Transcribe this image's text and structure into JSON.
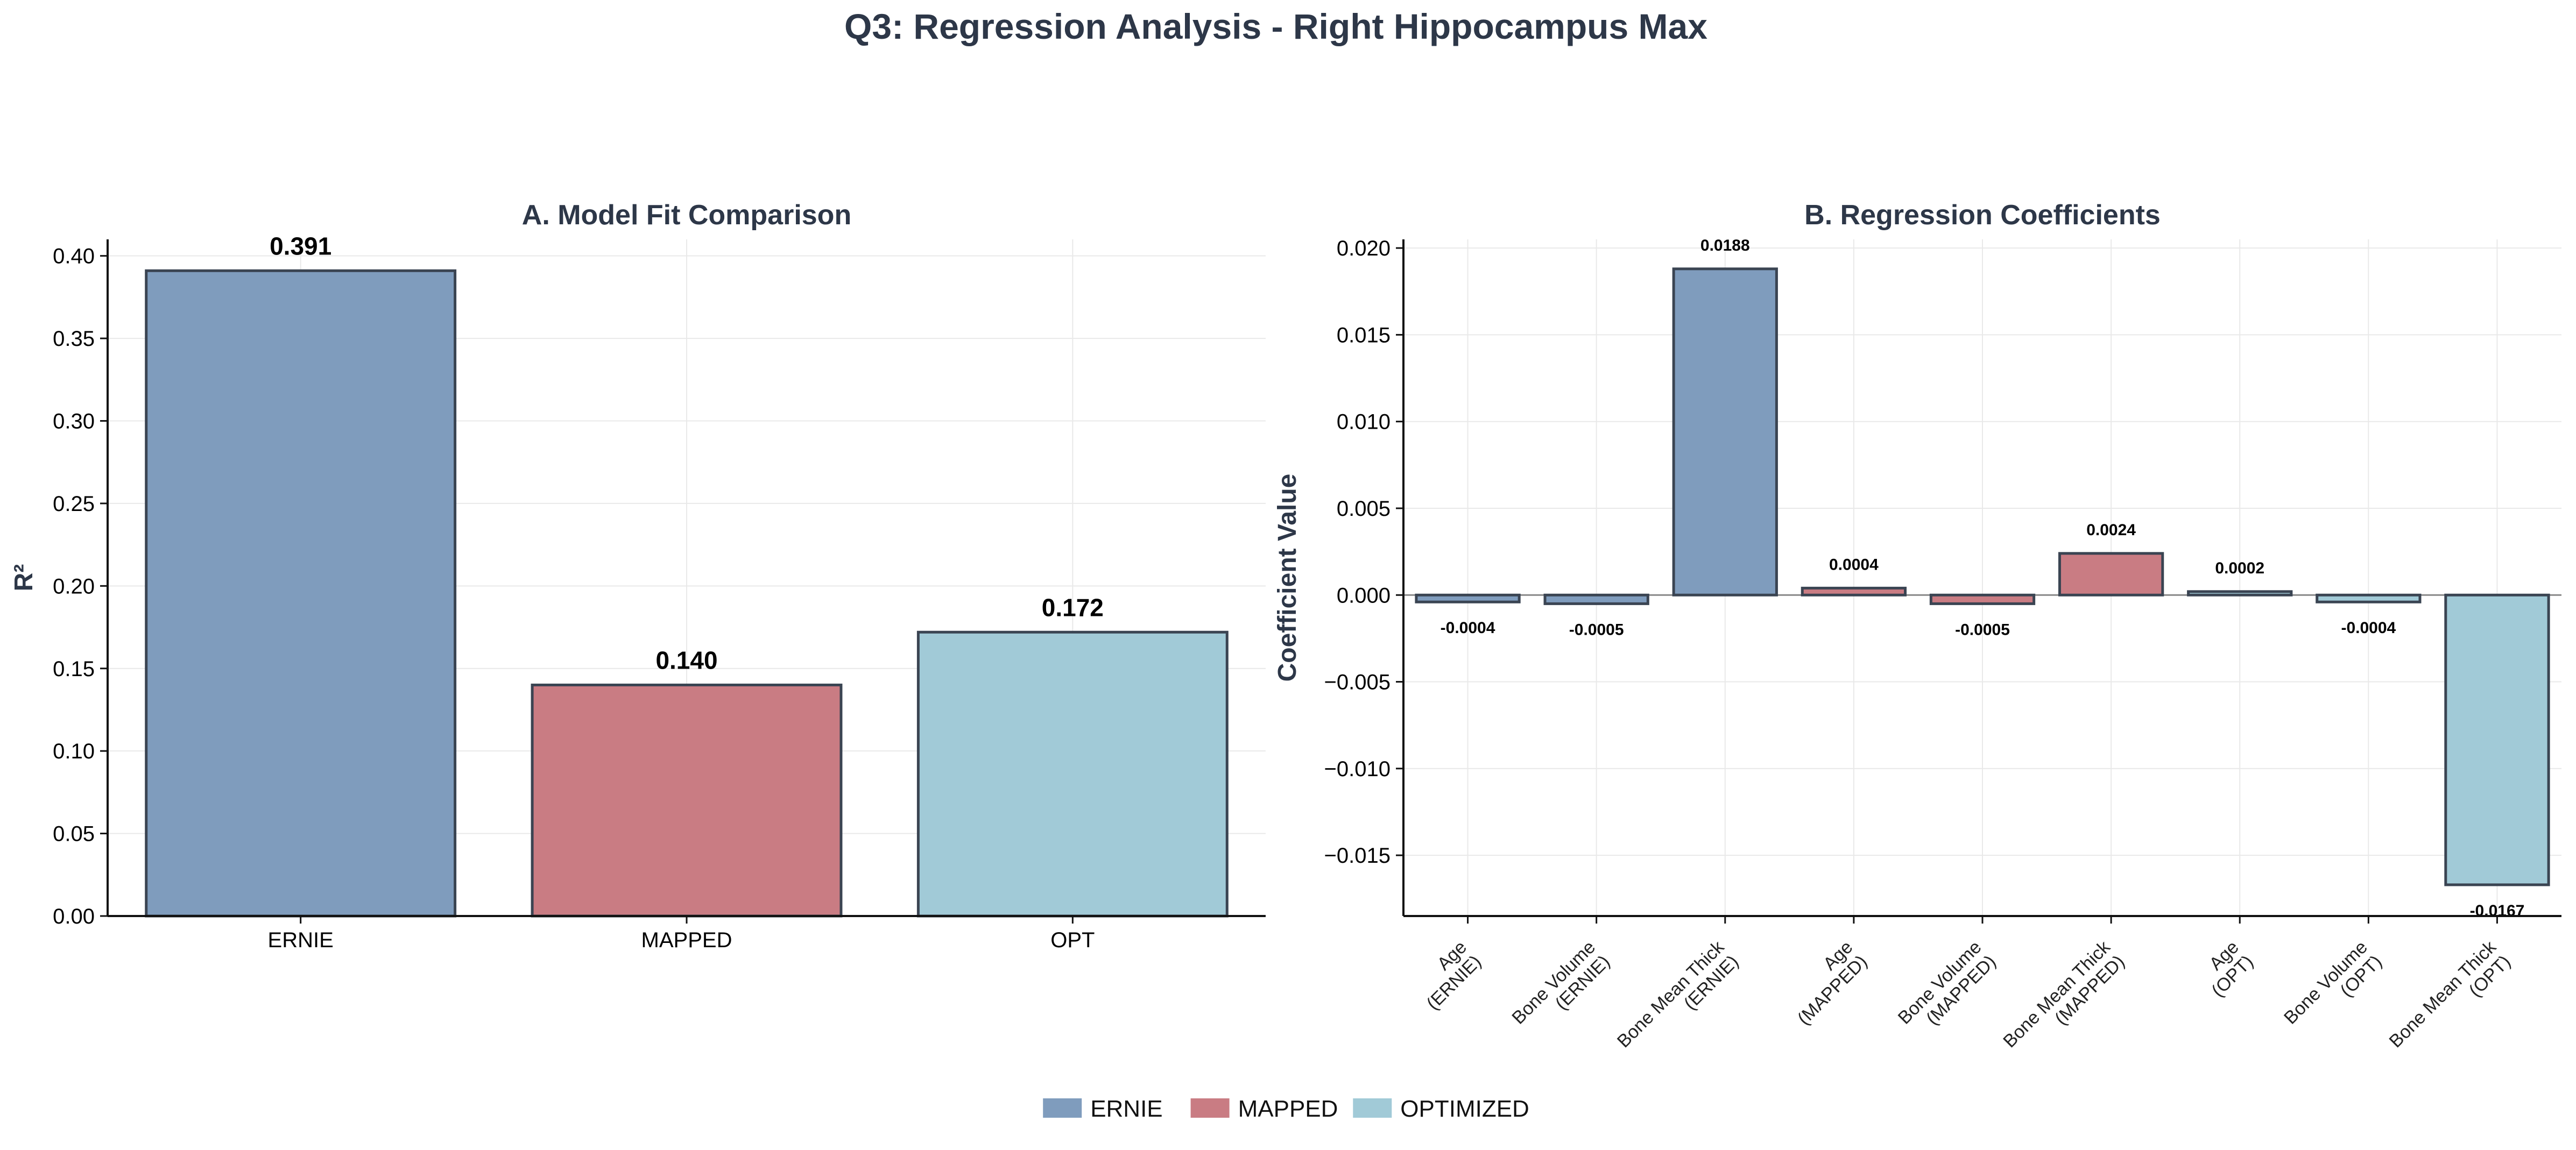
{
  "suptitle": "Q3: Regression Analysis - Right Hippocampus Max",
  "colors": {
    "ERNIE": "#7f9cbd",
    "MAPPED": "#c97c83",
    "OPTIMIZED": "#a1cad7",
    "edge": "#3a4452",
    "title": "#2d3748",
    "grid": "#e9e9e9"
  },
  "legend": {
    "placement": "bottom-center",
    "items": [
      {
        "label": "ERNIE",
        "color_key": "ERNIE"
      },
      {
        "label": "MAPPED",
        "color_key": "MAPPED"
      },
      {
        "label": "OPTIMIZED",
        "color_key": "OPTIMIZED"
      }
    ]
  },
  "chart_data": [
    {
      "type": "bar",
      "title": "A. Model Fit Comparison",
      "xlabel": "",
      "ylabel": "R²",
      "ylim": [
        0,
        0.41
      ],
      "yticks": [
        "0.00",
        "0.05",
        "0.10",
        "0.15",
        "0.20",
        "0.25",
        "0.30",
        "0.35",
        "0.40"
      ],
      "ytick_values": [
        0,
        0.05,
        0.1,
        0.15,
        0.2,
        0.25,
        0.3,
        0.35,
        0.4
      ],
      "categories": [
        "ERNIE",
        "MAPPED",
        "OPT"
      ],
      "values": [
        0.391,
        0.14,
        0.172
      ],
      "value_labels": [
        "0.391",
        "0.140",
        "0.172"
      ],
      "bar_colors": [
        "ERNIE",
        "MAPPED",
        "OPTIMIZED"
      ],
      "grid": true
    },
    {
      "type": "bar",
      "title": "B. Regression Coefficients",
      "xlabel": "",
      "ylabel": "Coefficient Value",
      "ylim": [
        -0.0185,
        0.0205
      ],
      "yticks": [
        "−0.015",
        "−0.010",
        "−0.005",
        "0.000",
        "0.005",
        "0.010",
        "0.015",
        "0.020"
      ],
      "ytick_values": [
        -0.015,
        -0.01,
        -0.005,
        0,
        0.005,
        0.01,
        0.015,
        0.02
      ],
      "categories": [
        [
          "Age",
          "(ERNIE)"
        ],
        [
          "Bone Volume",
          "(ERNIE)"
        ],
        [
          "Bone Mean Thick",
          "(ERNIE)"
        ],
        [
          "Age",
          "(MAPPED)"
        ],
        [
          "Bone Volume",
          "(MAPPED)"
        ],
        [
          "Bone Mean Thick",
          "(MAPPED)"
        ],
        [
          "Age",
          "(OPT)"
        ],
        [
          "Bone Volume",
          "(OPT)"
        ],
        [
          "Bone Mean Thick",
          "(OPT)"
        ]
      ],
      "values": [
        -0.0004,
        -0.0005,
        0.0188,
        0.0004,
        -0.0005,
        0.0024,
        0.0002,
        -0.0004,
        -0.0167
      ],
      "value_labels": [
        "-0.0004",
        "-0.0005",
        "0.0188",
        "0.0004",
        "-0.0005",
        "0.0024",
        "0.0002",
        "-0.0004",
        "-0.0167"
      ],
      "bar_colors": [
        "ERNIE",
        "ERNIE",
        "ERNIE",
        "MAPPED",
        "MAPPED",
        "MAPPED",
        "OPTIMIZED",
        "OPTIMIZED",
        "OPTIMIZED"
      ],
      "zero_line": true,
      "grid": true
    }
  ]
}
